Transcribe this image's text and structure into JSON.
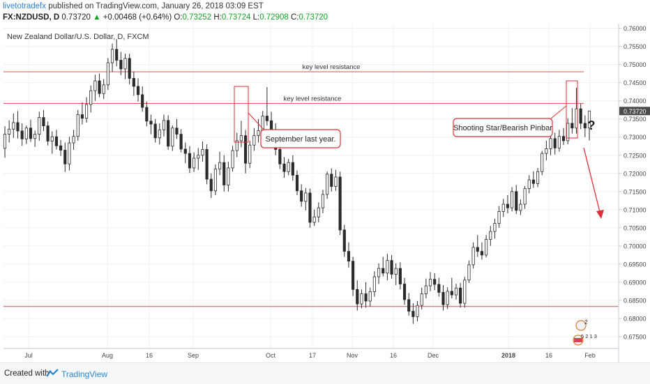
{
  "header": {
    "author": "livetotradefx",
    "published_text": "published on TradingView.com, January 26, 2018 03:09 EST",
    "symbol": "FX:NZDUSD, D",
    "last_price": "0.73720",
    "change": "+0.00468 (+0.64%)",
    "open_label": "O:",
    "open_value": "0.73252",
    "high_label": "H:",
    "high_value": "0.73724",
    "low_label": "L:",
    "low_value": "0.72908",
    "close_label": "C:",
    "close_value": "0.73720"
  },
  "footer": {
    "created_with": "Created with",
    "brand": "TradingView"
  },
  "colors": {
    "resistance": "#e8474b",
    "annotation": "#e02e36",
    "price_tag_bg": "#4a4a4a",
    "grid": "#edf0f4",
    "brand": "#2e86c8"
  },
  "chart_data": {
    "type": "candlestick",
    "title": "New Zealand Dollar/U.S. Dollar, D, FXCM",
    "ylim": [
      0.6725,
      0.7605
    ],
    "y_ticks": [
      "0.76000",
      "0.75500",
      "0.75000",
      "0.74500",
      "0.74000",
      "0.73500",
      "0.73000",
      "0.72500",
      "0.72000",
      "0.71500",
      "0.71000",
      "0.70500",
      "0.70000",
      "0.69500",
      "0.69000",
      "0.68500",
      "0.68000",
      "0.67500"
    ],
    "current_price": "0.73720",
    "x_ticks": [
      "Jul",
      "Aug",
      "16",
      "Sep",
      "Oct",
      "17",
      "Nov",
      "16",
      "Dec",
      "2018",
      "16",
      "Feb"
    ],
    "horizontal_lines": [
      {
        "price": 0.748,
        "label": "key level resistance"
      },
      {
        "price": 0.7393,
        "label": "key level resistance"
      },
      {
        "price": 0.6833,
        "label": ""
      }
    ],
    "annotations": [
      {
        "text": "September last year."
      },
      {
        "text": "Shooting Star/Bearish Pinbar"
      },
      {
        "text": "?"
      }
    ],
    "events": [
      {
        "type": "dividend",
        "text": "2"
      },
      {
        "type": "event",
        "text": "5 2 1 3"
      }
    ],
    "candles": [
      [
        0.7269,
        0.733,
        0.7243,
        0.7308
      ],
      [
        0.7308,
        0.7346,
        0.7285,
        0.7322
      ],
      [
        0.7322,
        0.7365,
        0.7298,
        0.734
      ],
      [
        0.734,
        0.7372,
        0.7296,
        0.7317
      ],
      [
        0.7317,
        0.7338,
        0.7276,
        0.7295
      ],
      [
        0.7295,
        0.7332,
        0.7281,
        0.7325
      ],
      [
        0.7325,
        0.7348,
        0.7287,
        0.7296
      ],
      [
        0.7296,
        0.7318,
        0.7273,
        0.7308
      ],
      [
        0.7308,
        0.737,
        0.729,
        0.7354
      ],
      [
        0.7354,
        0.7375,
        0.7317,
        0.7331
      ],
      [
        0.7331,
        0.7343,
        0.7277,
        0.7289
      ],
      [
        0.7289,
        0.7316,
        0.7254,
        0.7301
      ],
      [
        0.7301,
        0.732,
        0.7266,
        0.7276
      ],
      [
        0.7276,
        0.7292,
        0.7248,
        0.7264
      ],
      [
        0.7264,
        0.7285,
        0.7204,
        0.7226
      ],
      [
        0.7226,
        0.7301,
        0.7208,
        0.7284
      ],
      [
        0.7284,
        0.732,
        0.7265,
        0.7302
      ],
      [
        0.7302,
        0.7375,
        0.729,
        0.7362
      ],
      [
        0.7362,
        0.7396,
        0.7335,
        0.7352
      ],
      [
        0.7352,
        0.741,
        0.734,
        0.739
      ],
      [
        0.739,
        0.7442,
        0.7368,
        0.7428
      ],
      [
        0.7428,
        0.7472,
        0.74,
        0.7455
      ],
      [
        0.7455,
        0.7475,
        0.741,
        0.742
      ],
      [
        0.742,
        0.746,
        0.7405,
        0.7444
      ],
      [
        0.7444,
        0.7518,
        0.743,
        0.7505
      ],
      [
        0.7505,
        0.7558,
        0.748,
        0.7542
      ],
      [
        0.7542,
        0.757,
        0.7495,
        0.7512
      ],
      [
        0.7512,
        0.7535,
        0.7471,
        0.7488
      ],
      [
        0.7488,
        0.753,
        0.746,
        0.7517
      ],
      [
        0.7517,
        0.753,
        0.7445,
        0.7462
      ],
      [
        0.7462,
        0.748,
        0.7414,
        0.744
      ],
      [
        0.744,
        0.7462,
        0.7398,
        0.7417
      ],
      [
        0.7417,
        0.744,
        0.737,
        0.7382
      ],
      [
        0.7382,
        0.7398,
        0.733,
        0.7344
      ],
      [
        0.7344,
        0.7362,
        0.7308,
        0.7336
      ],
      [
        0.7336,
        0.735,
        0.7285,
        0.7298
      ],
      [
        0.7298,
        0.7338,
        0.728,
        0.732
      ],
      [
        0.732,
        0.7362,
        0.7302,
        0.7346
      ],
      [
        0.7346,
        0.736,
        0.7265,
        0.7275
      ],
      [
        0.7275,
        0.7332,
        0.7262,
        0.7325
      ],
      [
        0.7325,
        0.735,
        0.7295,
        0.7308
      ],
      [
        0.7308,
        0.7322,
        0.7258,
        0.7267
      ],
      [
        0.7267,
        0.7285,
        0.7228,
        0.7255
      ],
      [
        0.7255,
        0.7275,
        0.7201,
        0.7215
      ],
      [
        0.7215,
        0.7258,
        0.7204,
        0.7242
      ],
      [
        0.7242,
        0.727,
        0.721,
        0.725
      ],
      [
        0.725,
        0.7288,
        0.7232,
        0.7266
      ],
      [
        0.7266,
        0.728,
        0.717,
        0.7184
      ],
      [
        0.7184,
        0.72,
        0.7132,
        0.7152
      ],
      [
        0.7152,
        0.7225,
        0.714,
        0.7212
      ],
      [
        0.7212,
        0.726,
        0.7195,
        0.723
      ],
      [
        0.723,
        0.725,
        0.715,
        0.7168
      ],
      [
        0.7168,
        0.7232,
        0.715,
        0.7215
      ],
      [
        0.7215,
        0.7276,
        0.7205,
        0.7263
      ],
      [
        0.7263,
        0.7312,
        0.7245,
        0.729
      ],
      [
        0.729,
        0.7345,
        0.7272,
        0.7304
      ],
      [
        0.7304,
        0.732,
        0.72,
        0.7228
      ],
      [
        0.7228,
        0.729,
        0.7215,
        0.7278
      ],
      [
        0.7278,
        0.7325,
        0.7262,
        0.7304
      ],
      [
        0.7304,
        0.735,
        0.7285,
        0.7318
      ],
      [
        0.7318,
        0.7372,
        0.7306,
        0.7358
      ],
      [
        0.7358,
        0.7438,
        0.7332,
        0.7345
      ],
      [
        0.7345,
        0.737,
        0.73,
        0.7315
      ],
      [
        0.7315,
        0.7338,
        0.725,
        0.7266
      ],
      [
        0.7266,
        0.7288,
        0.7212,
        0.7226
      ],
      [
        0.7226,
        0.7245,
        0.7188,
        0.7205
      ],
      [
        0.7205,
        0.724,
        0.7195,
        0.723
      ],
      [
        0.723,
        0.725,
        0.718,
        0.7195
      ],
      [
        0.7195,
        0.7208,
        0.714,
        0.7152
      ],
      [
        0.7152,
        0.717,
        0.7108,
        0.7123
      ],
      [
        0.7123,
        0.716,
        0.7098,
        0.7146
      ],
      [
        0.7146,
        0.7158,
        0.705,
        0.7065
      ],
      [
        0.7065,
        0.71,
        0.7055,
        0.708
      ],
      [
        0.708,
        0.712,
        0.7065,
        0.7105
      ],
      [
        0.7105,
        0.7155,
        0.709,
        0.7142
      ],
      [
        0.7142,
        0.7205,
        0.713,
        0.7198
      ],
      [
        0.7198,
        0.7214,
        0.715,
        0.7164
      ],
      [
        0.7164,
        0.721,
        0.7152,
        0.719
      ],
      [
        0.719,
        0.7205,
        0.703,
        0.7044
      ],
      [
        0.7044,
        0.7058,
        0.697,
        0.6985
      ],
      [
        0.6985,
        0.701,
        0.694,
        0.6958
      ],
      [
        0.6958,
        0.697,
        0.6862,
        0.688
      ],
      [
        0.688,
        0.6905,
        0.6822,
        0.684
      ],
      [
        0.684,
        0.688,
        0.6828,
        0.6868
      ],
      [
        0.6868,
        0.69,
        0.683,
        0.6848
      ],
      [
        0.6848,
        0.6885,
        0.6832,
        0.6874
      ],
      [
        0.6874,
        0.693,
        0.686,
        0.6915
      ],
      [
        0.6915,
        0.6952,
        0.6895,
        0.6938
      ],
      [
        0.6938,
        0.697,
        0.6916,
        0.6925
      ],
      [
        0.6925,
        0.6978,
        0.6905,
        0.696
      ],
      [
        0.696,
        0.6975,
        0.691,
        0.6922
      ],
      [
        0.6922,
        0.6952,
        0.6892,
        0.6938
      ],
      [
        0.6938,
        0.6955,
        0.688,
        0.6895
      ],
      [
        0.6895,
        0.6912,
        0.6838,
        0.6852
      ],
      [
        0.6852,
        0.687,
        0.6808,
        0.682
      ],
      [
        0.682,
        0.6842,
        0.6785,
        0.6805
      ],
      [
        0.6805,
        0.6848,
        0.6792,
        0.6836
      ],
      [
        0.6836,
        0.6885,
        0.6825,
        0.6868
      ],
      [
        0.6868,
        0.691,
        0.6855,
        0.689
      ],
      [
        0.689,
        0.6928,
        0.6875,
        0.6908
      ],
      [
        0.6908,
        0.6925,
        0.6878,
        0.6894
      ],
      [
        0.6894,
        0.6912,
        0.686,
        0.6872
      ],
      [
        0.6872,
        0.6892,
        0.6822,
        0.6838
      ],
      [
        0.6838,
        0.6886,
        0.6826,
        0.6875
      ],
      [
        0.6875,
        0.6912,
        0.6855,
        0.6865
      ],
      [
        0.6865,
        0.6896,
        0.6852,
        0.6884
      ],
      [
        0.6884,
        0.6898,
        0.683,
        0.6842
      ],
      [
        0.6842,
        0.6915,
        0.683,
        0.6906
      ],
      [
        0.6906,
        0.696,
        0.6898,
        0.6948
      ],
      [
        0.6948,
        0.701,
        0.6938,
        0.6996
      ],
      [
        0.6996,
        0.703,
        0.697,
        0.6985
      ],
      [
        0.6985,
        0.701,
        0.6962,
        0.6975
      ],
      [
        0.6975,
        0.703,
        0.6968,
        0.7018
      ],
      [
        0.7018,
        0.7055,
        0.7,
        0.704
      ],
      [
        0.704,
        0.7075,
        0.702,
        0.7062
      ],
      [
        0.7062,
        0.711,
        0.705,
        0.7095
      ],
      [
        0.7095,
        0.713,
        0.708,
        0.7115
      ],
      [
        0.7115,
        0.714,
        0.709,
        0.7105
      ],
      [
        0.7105,
        0.7162,
        0.7095,
        0.715
      ],
      [
        0.715,
        0.7168,
        0.7088,
        0.7098
      ],
      [
        0.7098,
        0.7128,
        0.7085,
        0.7115
      ],
      [
        0.7115,
        0.7165,
        0.7102,
        0.7158
      ],
      [
        0.7158,
        0.7195,
        0.7145,
        0.7182
      ],
      [
        0.7182,
        0.7206,
        0.716,
        0.7172
      ],
      [
        0.7172,
        0.7215,
        0.7162,
        0.7205
      ],
      [
        0.7205,
        0.7262,
        0.7195,
        0.7255
      ],
      [
        0.7255,
        0.729,
        0.7236,
        0.7268
      ],
      [
        0.7268,
        0.731,
        0.725,
        0.7296
      ],
      [
        0.7296,
        0.7312,
        0.7252,
        0.727
      ],
      [
        0.727,
        0.732,
        0.726,
        0.7302
      ],
      [
        0.7302,
        0.7325,
        0.7278,
        0.729
      ],
      [
        0.729,
        0.7352,
        0.728,
        0.7338
      ],
      [
        0.7338,
        0.738,
        0.731,
        0.7325
      ],
      [
        0.7325,
        0.7436,
        0.731,
        0.7378
      ],
      [
        0.7378,
        0.7392,
        0.7322,
        0.7338
      ],
      [
        0.7338,
        0.736,
        0.73,
        0.7325
      ],
      [
        0.7325,
        0.7372,
        0.7291,
        0.7372
      ]
    ]
  }
}
